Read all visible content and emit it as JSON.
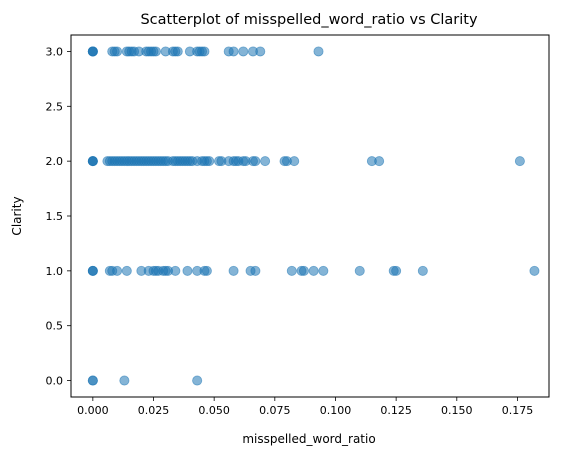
{
  "chart_data": {
    "type": "scatter",
    "title": "Scatterplot of misspelled_word_ratio vs Clarity",
    "xlabel": "misspelled_word_ratio",
    "ylabel": "Clarity",
    "xlim": [
      -0.009,
      0.188
    ],
    "ylim": [
      -0.15,
      3.15
    ],
    "xticks": [
      0.0,
      0.025,
      0.05,
      0.075,
      0.1,
      0.125,
      0.15,
      0.175
    ],
    "xtick_labels": [
      "0.000",
      "0.025",
      "0.050",
      "0.075",
      "0.100",
      "0.125",
      "0.150",
      "0.175"
    ],
    "yticks": [
      0.0,
      0.5,
      1.0,
      1.5,
      2.0,
      2.5,
      3.0
    ],
    "ytick_labels": [
      "0.0",
      "0.5",
      "1.0",
      "1.5",
      "2.0",
      "2.5",
      "3.0"
    ],
    "grid": false,
    "marker_color": "#1f77b4",
    "marker_alpha": 0.55,
    "series": [
      {
        "points": [
          [
            0.0,
            3
          ],
          [
            0.0,
            3
          ],
          [
            0.0,
            3
          ],
          [
            0.0,
            3
          ],
          [
            0.008,
            3
          ],
          [
            0.009,
            3
          ],
          [
            0.01,
            3
          ],
          [
            0.014,
            3
          ],
          [
            0.015,
            3
          ],
          [
            0.016,
            3
          ],
          [
            0.017,
            3
          ],
          [
            0.019,
            3
          ],
          [
            0.022,
            3
          ],
          [
            0.023,
            3
          ],
          [
            0.024,
            3
          ],
          [
            0.025,
            3
          ],
          [
            0.026,
            3
          ],
          [
            0.03,
            3
          ],
          [
            0.033,
            3
          ],
          [
            0.034,
            3
          ],
          [
            0.035,
            3
          ],
          [
            0.04,
            3
          ],
          [
            0.043,
            3
          ],
          [
            0.044,
            3
          ],
          [
            0.045,
            3
          ],
          [
            0.046,
            3
          ],
          [
            0.056,
            3
          ],
          [
            0.058,
            3
          ],
          [
            0.062,
            3
          ],
          [
            0.066,
            3
          ],
          [
            0.069,
            3
          ],
          [
            0.093,
            3
          ],
          [
            0.0,
            2
          ],
          [
            0.0,
            2
          ],
          [
            0.0,
            2
          ],
          [
            0.0,
            2
          ],
          [
            0.006,
            2
          ],
          [
            0.007,
            2
          ],
          [
            0.008,
            2
          ],
          [
            0.009,
            2
          ],
          [
            0.01,
            2
          ],
          [
            0.011,
            2
          ],
          [
            0.012,
            2
          ],
          [
            0.013,
            2
          ],
          [
            0.014,
            2
          ],
          [
            0.015,
            2
          ],
          [
            0.016,
            2
          ],
          [
            0.017,
            2
          ],
          [
            0.018,
            2
          ],
          [
            0.019,
            2
          ],
          [
            0.02,
            2
          ],
          [
            0.021,
            2
          ],
          [
            0.022,
            2
          ],
          [
            0.023,
            2
          ],
          [
            0.024,
            2
          ],
          [
            0.025,
            2
          ],
          [
            0.026,
            2
          ],
          [
            0.027,
            2
          ],
          [
            0.028,
            2
          ],
          [
            0.029,
            2
          ],
          [
            0.03,
            2
          ],
          [
            0.031,
            2
          ],
          [
            0.033,
            2
          ],
          [
            0.034,
            2
          ],
          [
            0.035,
            2
          ],
          [
            0.036,
            2
          ],
          [
            0.037,
            2
          ],
          [
            0.038,
            2
          ],
          [
            0.039,
            2
          ],
          [
            0.04,
            2
          ],
          [
            0.041,
            2
          ],
          [
            0.043,
            2
          ],
          [
            0.045,
            2
          ],
          [
            0.046,
            2
          ],
          [
            0.047,
            2
          ],
          [
            0.048,
            2
          ],
          [
            0.052,
            2
          ],
          [
            0.053,
            2
          ],
          [
            0.056,
            2
          ],
          [
            0.058,
            2
          ],
          [
            0.059,
            2
          ],
          [
            0.06,
            2
          ],
          [
            0.062,
            2
          ],
          [
            0.063,
            2
          ],
          [
            0.066,
            2
          ],
          [
            0.067,
            2
          ],
          [
            0.071,
            2
          ],
          [
            0.079,
            2
          ],
          [
            0.08,
            2
          ],
          [
            0.083,
            2
          ],
          [
            0.115,
            2
          ],
          [
            0.118,
            2
          ],
          [
            0.176,
            2
          ],
          [
            0.0,
            1
          ],
          [
            0.0,
            1
          ],
          [
            0.0,
            1
          ],
          [
            0.007,
            1
          ],
          [
            0.008,
            1
          ],
          [
            0.01,
            1
          ],
          [
            0.014,
            1
          ],
          [
            0.02,
            1
          ],
          [
            0.023,
            1
          ],
          [
            0.025,
            1
          ],
          [
            0.026,
            1
          ],
          [
            0.027,
            1
          ],
          [
            0.029,
            1
          ],
          [
            0.03,
            1
          ],
          [
            0.031,
            1
          ],
          [
            0.034,
            1
          ],
          [
            0.039,
            1
          ],
          [
            0.043,
            1
          ],
          [
            0.046,
            1
          ],
          [
            0.047,
            1
          ],
          [
            0.058,
            1
          ],
          [
            0.065,
            1
          ],
          [
            0.067,
            1
          ],
          [
            0.082,
            1
          ],
          [
            0.086,
            1
          ],
          [
            0.087,
            1
          ],
          [
            0.091,
            1
          ],
          [
            0.095,
            1
          ],
          [
            0.11,
            1
          ],
          [
            0.124,
            1
          ],
          [
            0.125,
            1
          ],
          [
            0.136,
            1
          ],
          [
            0.182,
            1
          ],
          [
            0.0,
            0
          ],
          [
            0.0,
            0
          ],
          [
            0.013,
            0
          ],
          [
            0.043,
            0
          ]
        ]
      }
    ]
  }
}
